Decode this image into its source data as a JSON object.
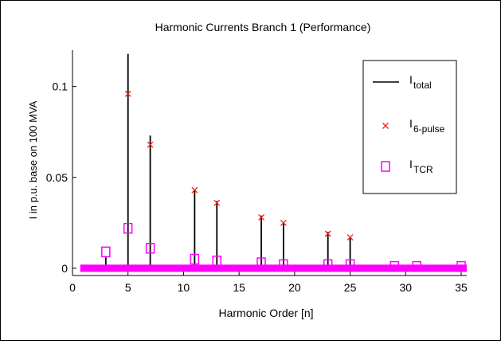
{
  "chart_data": {
    "type": "bar",
    "title": "Harmonic Currents Branch 1 (Performance)",
    "xlabel": "Harmonic Order [n]",
    "ylabel": "I in p.u. base on 100 MVA",
    "xlim": [
      0,
      35.5
    ],
    "ylim": [
      -0.004,
      0.12
    ],
    "x_ticks": [
      "0",
      "5",
      "10",
      "15",
      "20",
      "25",
      "30",
      "35"
    ],
    "y_ticks": [
      "0",
      "0.05",
      "0.1"
    ],
    "x_tick_values": [
      0,
      5,
      10,
      15,
      20,
      25,
      30,
      35
    ],
    "y_tick_values": [
      0,
      0.05,
      0.1
    ],
    "legend": {
      "placement": "top-right",
      "entries": [
        {
          "main": "I",
          "sub": "total",
          "marker": "line"
        },
        {
          "main": "I",
          "sub": "6-pulse",
          "marker": "x"
        },
        {
          "main": "I",
          "sub": "TCR",
          "marker": "square"
        }
      ]
    },
    "colors": {
      "total": "#000000",
      "six_pulse": "#e8251e",
      "tcr": "#ff00ff"
    },
    "series": [
      {
        "name": "Itotal",
        "x": [
          3,
          5,
          7,
          11,
          13,
          17,
          19,
          23,
          25,
          29,
          31,
          35
        ],
        "values": [
          0.006,
          0.118,
          0.073,
          0.043,
          0.037,
          0.029,
          0.025,
          0.02,
          0.017,
          0.002,
          0.002,
          0.002
        ]
      },
      {
        "name": "I6-pulse",
        "x": [
          5,
          7,
          11,
          13,
          17,
          19,
          23,
          25
        ],
        "values": [
          0.096,
          0.068,
          0.043,
          0.036,
          0.028,
          0.025,
          0.019,
          0.017
        ]
      },
      {
        "name": "ITCR",
        "x": [
          3,
          5,
          7,
          11,
          13,
          17,
          19,
          23,
          25,
          29,
          31,
          35
        ],
        "values": [
          0.009,
          0.022,
          0.011,
          0.005,
          0.004,
          0.003,
          0.002,
          0.002,
          0.002,
          0.001,
          0.001,
          0.001
        ]
      }
    ],
    "baseline_band": {
      "x_from": 0.7,
      "x_to": 35.5,
      "y_from": -0.002,
      "y_to": 0.002
    }
  }
}
